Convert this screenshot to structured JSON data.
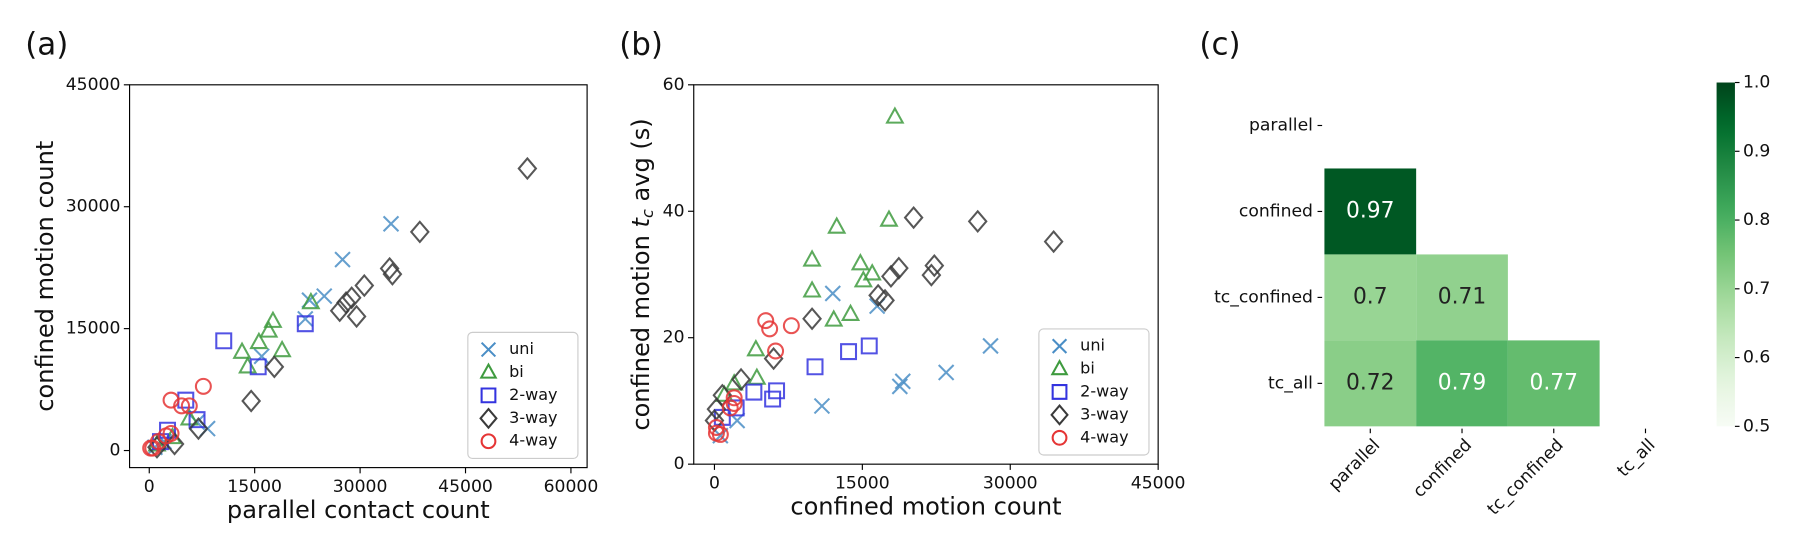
{
  "chart_data": [
    {
      "type": "scatter",
      "panel_label": "(a)",
      "x_label": "parallel contact count",
      "y_label": "confined motion count",
      "xlim": [
        -2800,
        62300
      ],
      "ylim": [
        -2100,
        45000
      ],
      "xticks": [
        0,
        15000,
        30000,
        45000,
        60000
      ],
      "yticks": [
        0,
        15000,
        30000,
        45000
      ],
      "legend": "lower right",
      "series": [
        {
          "name": "uni",
          "color": "#4a8ec6",
          "marker": "x",
          "x": [
            34400,
            27500,
            24900,
            22800,
            22200,
            16000,
            8300,
            6800,
            2100,
            800
          ],
          "y": [
            27900,
            23500,
            19000,
            18500,
            16200,
            11600,
            2700,
            3500,
            1100,
            400
          ]
        },
        {
          "name": "bi",
          "color": "#3f9b3f",
          "marker": "triangle",
          "x": [
            17600,
            17000,
            15600,
            13200,
            14000,
            18900,
            23000,
            5700,
            3300,
            1100
          ],
          "y": [
            15900,
            14700,
            13300,
            12100,
            10300,
            12300,
            18200,
            3900,
            1600,
            700
          ]
        },
        {
          "name": "2-way",
          "color": "#3434df",
          "marker": "square",
          "x": [
            10600,
            22200,
            15500,
            5200,
            6800,
            2600,
            1600
          ],
          "y": [
            13500,
            15600,
            10300,
            6200,
            3800,
            2500,
            1100
          ]
        },
        {
          "name": "3-way",
          "color": "#3a3a3a",
          "marker": "diamond",
          "x": [
            53800,
            38500,
            34200,
            34600,
            30600,
            28800,
            28000,
            27100,
            29500,
            17800,
            14500,
            7000,
            3600,
            1100
          ],
          "y": [
            34700,
            26900,
            22400,
            21700,
            20300,
            18800,
            18200,
            17200,
            16500,
            10300,
            6100,
            2700,
            800,
            400
          ]
        },
        {
          "name": "4-way",
          "color": "#e53535",
          "marker": "circle",
          "x": [
            3100,
            7700,
            5700,
            4600,
            3100,
            2400,
            1300,
            500,
            200
          ],
          "y": [
            6200,
            7900,
            5500,
            5500,
            2100,
            1800,
            1100,
            300,
            300
          ]
        }
      ]
    },
    {
      "type": "scatter",
      "panel_label": "(b)",
      "x_label": "confined motion count",
      "y_label": [
        "confined motion ",
        "t",
        "c",
        " avg (s)"
      ],
      "xlim": [
        -2100,
        45000
      ],
      "ylim": [
        0,
        60
      ],
      "xticks": [
        0,
        15000,
        30000,
        45000
      ],
      "yticks": [
        0,
        20,
        40,
        60
      ],
      "legend": "lower right",
      "series": [
        {
          "name": "uni",
          "color": "#4a8ec6",
          "marker": "x",
          "x": [
            12000,
            16500,
            28000,
            23500,
            19100,
            18800,
            10900,
            2300,
            600
          ],
          "y": [
            27.0,
            25.0,
            18.7,
            14.5,
            13.1,
            12.3,
            9.2,
            6.9,
            4.5
          ]
        },
        {
          "name": "bi",
          "color": "#3f9b3f",
          "marker": "triangle",
          "x": [
            18300,
            12400,
            17700,
            9900,
            14800,
            16000,
            15100,
            9900,
            13800,
            12100,
            4200,
            4300,
            2000,
            1000
          ],
          "y": [
            54.9,
            37.5,
            38.6,
            32.3,
            31.7,
            30.1,
            29.0,
            27.4,
            23.7,
            22.8,
            18.1,
            13.6,
            12.7,
            10.9
          ]
        },
        {
          "name": "2-way",
          "color": "#3434df",
          "marker": "square",
          "x": [
            15700,
            13600,
            10200,
            6300,
            5900,
            4000,
            2200,
            800
          ],
          "y": [
            18.7,
            17.8,
            15.4,
            11.6,
            10.3,
            11.4,
            8.9,
            7.4
          ]
        },
        {
          "name": "3-way",
          "color": "#3a3a3a",
          "marker": "diamond",
          "x": [
            34400,
            26700,
            20200,
            22300,
            18700,
            22000,
            17900,
            16600,
            17300,
            9900,
            6000,
            2700,
            800,
            200,
            0
          ],
          "y": [
            35.2,
            38.4,
            39.0,
            31.4,
            31.0,
            29.9,
            29.7,
            26.7,
            25.9,
            23.0,
            16.7,
            13.4,
            10.9,
            8.7,
            6.9
          ]
        },
        {
          "name": "4-way",
          "color": "#e53535",
          "marker": "circle",
          "x": [
            5200,
            5600,
            7800,
            6200,
            2000,
            1600,
            2000,
            200,
            200,
            600
          ],
          "y": [
            22.7,
            21.4,
            21.9,
            17.9,
            10.5,
            8.9,
            9.6,
            5.8,
            4.9,
            4.7
          ]
        }
      ]
    },
    {
      "type": "heatmap",
      "panel_label": "(c)",
      "rows": [
        "parallel",
        "confined",
        "tc_confined",
        "tc_all"
      ],
      "columns": [
        "parallel",
        "confined",
        "tc_confined",
        "tc_all"
      ],
      "values": [
        [
          null,
          null,
          null,
          null
        ],
        [
          0.97,
          null,
          null,
          null
        ],
        [
          0.7,
          0.71,
          null,
          null
        ],
        [
          0.72,
          0.79,
          0.77,
          null
        ]
      ],
      "colormap": "Greens",
      "clim": [
        0.5,
        1.0
      ],
      "cticks": [
        0.5,
        0.6,
        0.7,
        0.8,
        0.9,
        {
          "value": 1.0,
          "label": "1.0"
        }
      ]
    }
  ]
}
